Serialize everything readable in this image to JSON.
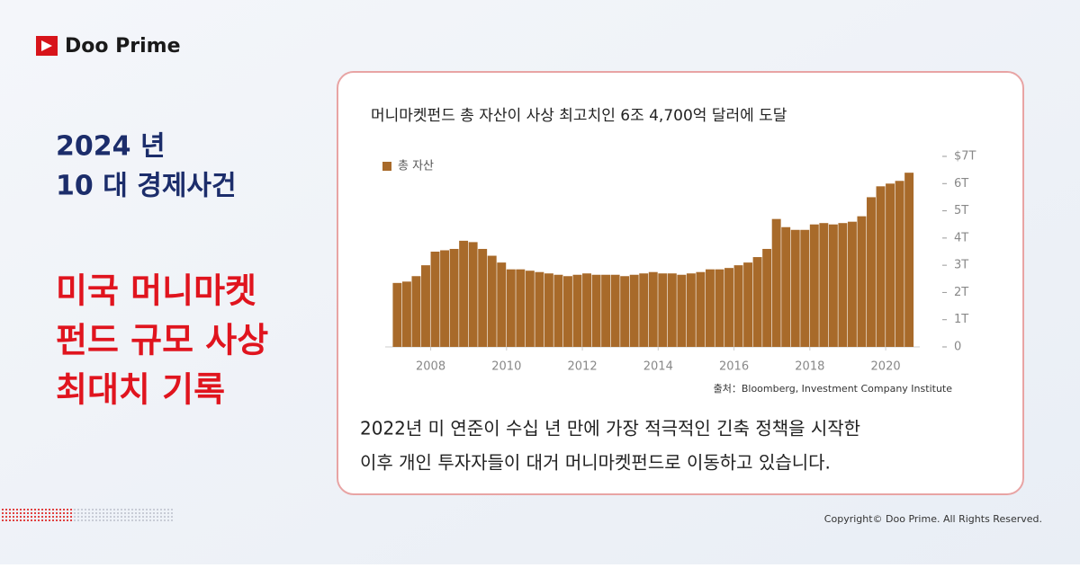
{
  "brand": "Doo Prime",
  "heading": {
    "lines": [
      "2024 년",
      "10 대 경제사건"
    ]
  },
  "headline": {
    "lines": [
      "미국 머니마켓",
      "펀드 규모 사상",
      "최대치 기록"
    ]
  },
  "chart_data": {
    "type": "bar",
    "title": "머니마켓펀드 총 자산이 사상 최고치인 6조 4,700억 달러에 도달",
    "source": "출처：Bloomberg, Investment Company Institute",
    "x": [
      2007,
      2007.25,
      2007.5,
      2007.75,
      2008,
      2008.25,
      2008.5,
      2008.75,
      2009,
      2009.25,
      2009.5,
      2009.75,
      2010,
      2010.25,
      2010.5,
      2010.75,
      2011,
      2011.25,
      2011.5,
      2011.75,
      2012,
      2012.25,
      2012.5,
      2012.75,
      2013,
      2013.25,
      2013.5,
      2013.75,
      2014,
      2014.25,
      2014.5,
      2014.75,
      2015,
      2015.25,
      2015.5,
      2015.75,
      2016,
      2016.25,
      2016.5,
      2016.75,
      2017,
      2017.25,
      2017.5,
      2017.75,
      2018,
      2018.25,
      2018.5,
      2018.75,
      2019,
      2019.25,
      2019.5,
      2019.75,
      2020,
      2020.25,
      2020.5
    ],
    "series": [
      {
        "name": "총 자산",
        "color": "#a86a2a",
        "values": [
          2.35,
          2.4,
          2.6,
          3.0,
          3.5,
          3.55,
          3.6,
          3.9,
          3.85,
          3.6,
          3.35,
          3.1,
          2.85,
          2.85,
          2.8,
          2.75,
          2.7,
          2.65,
          2.6,
          2.65,
          2.7,
          2.65,
          2.65,
          2.65,
          2.6,
          2.65,
          2.7,
          2.75,
          2.7,
          2.7,
          2.65,
          2.7,
          2.75,
          2.85,
          2.85,
          2.9,
          3.0,
          3.1,
          3.3,
          3.6,
          4.7,
          4.4,
          4.3,
          4.3,
          4.5,
          4.55,
          4.5,
          4.55,
          4.6,
          4.8,
          5.5,
          5.9,
          6.0,
          6.1,
          6.4
        ]
      }
    ],
    "xlim": [
      2006.8,
      2020.9
    ],
    "ylim": [
      0,
      7
    ],
    "xticks": [
      2008,
      2010,
      2012,
      2014,
      2016,
      2018,
      2020
    ],
    "yticks": [
      0,
      {
        "value": 1,
        "label": "1T"
      },
      {
        "value": 2,
        "label": "2T"
      },
      {
        "value": 3,
        "label": "3T"
      },
      {
        "value": 4,
        "label": "4T"
      },
      {
        "value": 5,
        "label": "5T"
      },
      {
        "value": 6,
        "label": "6T"
      },
      {
        "value": 7,
        "label": "$7T"
      }
    ]
  },
  "caption": {
    "lines": [
      "2022년 미 연준이 수십 년 만에 가장 적극적인 긴축 정책을 시작한",
      "이후 개인 투자자들이 대거 머니마켓펀드로 이동하고 있습니다."
    ]
  },
  "copyright": "Copyright© Doo Prime. All Rights Reserved."
}
